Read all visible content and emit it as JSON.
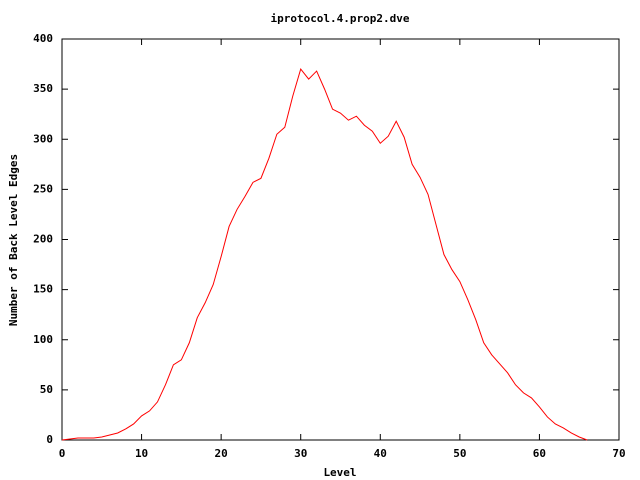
{
  "chart_data": {
    "type": "line",
    "title": "iprotocol.4.prop2.dve",
    "x_label": "Level",
    "y_label": "Number of Back Level Edges",
    "x": [
      0,
      1,
      2,
      3,
      4,
      5,
      6,
      7,
      8,
      9,
      10,
      11,
      12,
      13,
      14,
      15,
      16,
      17,
      18,
      19,
      20,
      21,
      22,
      23,
      24,
      25,
      26,
      27,
      28,
      29,
      30,
      31,
      32,
      33,
      34,
      35,
      36,
      37,
      38,
      39,
      40,
      41,
      42,
      43,
      44,
      45,
      46,
      47,
      48,
      49,
      50,
      51,
      52,
      53,
      54,
      55,
      56,
      57,
      58,
      59,
      60,
      61,
      62,
      63,
      64,
      65,
      66
    ],
    "series": [
      {
        "color": "#ff0000",
        "values": [
          0,
          1,
          2,
          2,
          2,
          3,
          5,
          7,
          11,
          16,
          24,
          29,
          38,
          55,
          75,
          80,
          97,
          122,
          137,
          155,
          183,
          213,
          230,
          243,
          257,
          261,
          281,
          305,
          312,
          343,
          370,
          360,
          368,
          350,
          330,
          326,
          319,
          323,
          314,
          308,
          296,
          303,
          318,
          302,
          275,
          262,
          245,
          215,
          185,
          170,
          158,
          140,
          120,
          97,
          85,
          76,
          67,
          55,
          47,
          42,
          33,
          23,
          16,
          12,
          7,
          3,
          0
        ]
      }
    ],
    "xlim": [
      0,
      70
    ],
    "xticks": [
      0,
      10,
      20,
      30,
      40,
      50,
      60,
      70
    ],
    "ylim": [
      0,
      400
    ],
    "yticks": [
      0,
      50,
      100,
      150,
      200,
      250,
      300,
      350,
      400
    ]
  }
}
